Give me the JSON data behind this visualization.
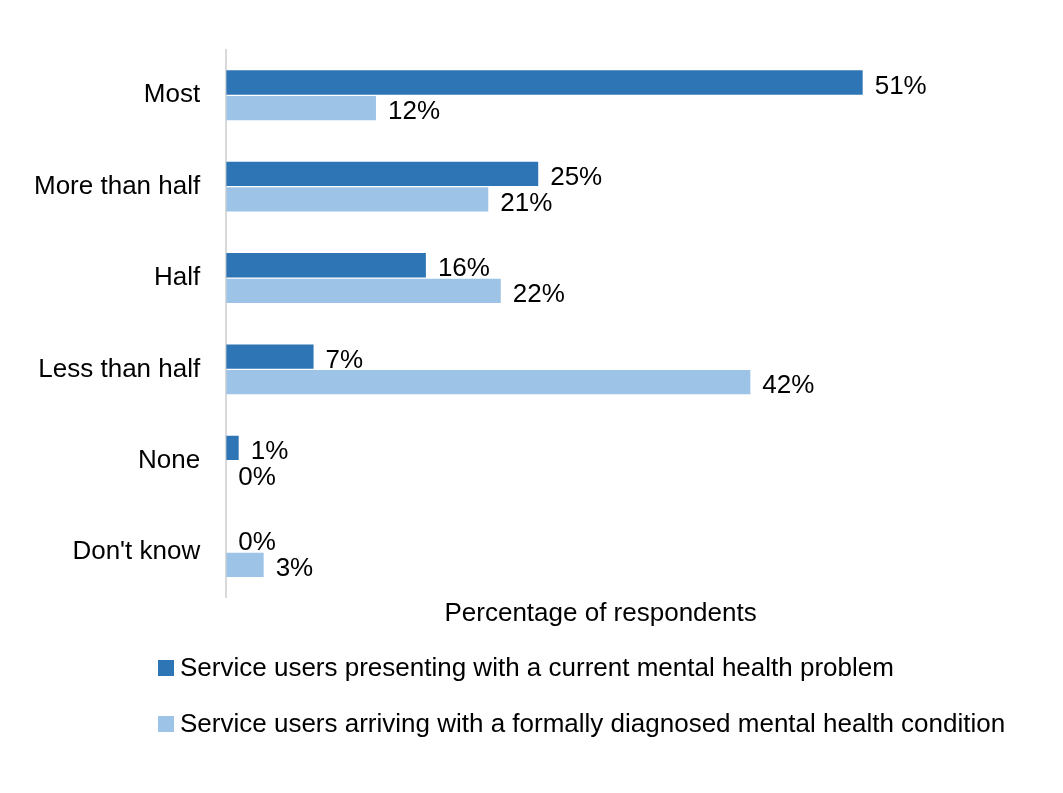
{
  "chart_data": {
    "type": "bar",
    "orientation": "horizontal",
    "xlabel": "Percentage of respondents",
    "categories": [
      "Most",
      "More than half",
      "Half",
      "Less than half",
      "None",
      "Don't know"
    ],
    "tick_labels": "y",
    "grid": false,
    "legend": "bottom",
    "series": [
      {
        "name": "Service users presenting with a current mental health problem",
        "color": "#2e75b6",
        "values": [
          51,
          25,
          16,
          7,
          1,
          0
        ],
        "value_labels": [
          "51%",
          "25%",
          "16%",
          "7%",
          "1%",
          "0%"
        ]
      },
      {
        "name": "Service users arriving with a formally diagnosed mental health condition",
        "color": "#9dc3e6",
        "values": [
          12,
          21,
          22,
          42,
          0,
          3
        ],
        "value_labels": [
          "12%",
          "21%",
          "22%",
          "42%",
          "0%",
          "3%"
        ]
      }
    ]
  }
}
